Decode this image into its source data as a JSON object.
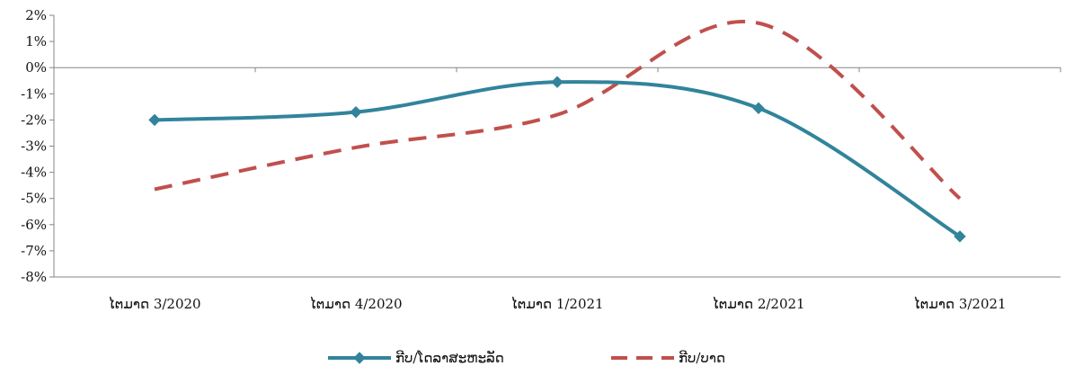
{
  "chart_data": {
    "type": "line",
    "categories": [
      "ໄຕມາດ 3/2020",
      "ໄຕມາດ 4/2020",
      "ໄຕມາດ 1/2021",
      "ໄຕມາດ 2/2021",
      "ໄຕມາດ 3/2021"
    ],
    "series": [
      {
        "name": "ກີບ/ໂດລາສະຫະລັດ",
        "values": [
          -2.0,
          -1.7,
          -0.55,
          -1.55,
          -6.45
        ],
        "color": "#31849b",
        "style": "solid",
        "marker": "diamond"
      },
      {
        "name": "ກີບ/ບາດ",
        "values": [
          -4.65,
          -3.05,
          -1.8,
          1.7,
          -5.0
        ],
        "color": "#c0504d",
        "style": "dashed",
        "marker": "none"
      }
    ],
    "ylim": [
      -8,
      2
    ],
    "yticks": [
      "2%",
      "1%",
      "0%",
      "-1%",
      "-2%",
      "-3%",
      "-4%",
      "-5%",
      "-6%",
      "-7%",
      "-8%"
    ],
    "grid": false,
    "legend": "bottom"
  }
}
